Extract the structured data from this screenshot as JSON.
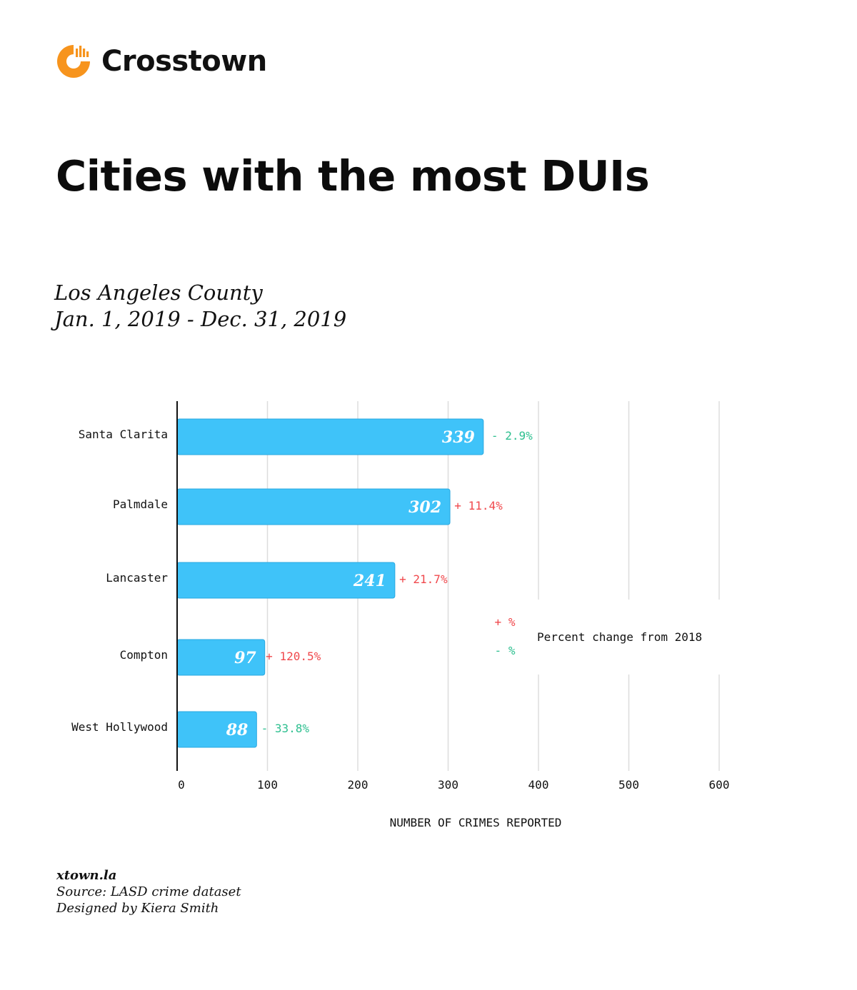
{
  "brand": {
    "name": "Crosstown",
    "logo_colors": {
      "primary": "#f7941d",
      "bars": "#f7941d"
    }
  },
  "title": "Cities with the most DUIs",
  "subtitle": {
    "line1": "Los Angeles County",
    "line2": "Jan. 1, 2019 - Dec. 31, 2019"
  },
  "chart_data": {
    "type": "bar",
    "orientation": "horizontal",
    "categories": [
      "Santa Clarita",
      "Palmdale",
      "Lancaster",
      "Compton",
      "West Hollywood"
    ],
    "values": [
      339,
      302,
      241,
      97,
      88
    ],
    "value_labels": [
      "339",
      "302",
      "241",
      "97",
      "88"
    ],
    "pct_change": [
      "- 2.9%",
      "+ 11.4%",
      "+ 21.7%",
      "+ 120.5%",
      "- 33.8%"
    ],
    "pct_direction": [
      "down",
      "up",
      "up",
      "up",
      "down"
    ],
    "xlabel": "NUMBER OF CRIMES REPORTED",
    "xlim": [
      0,
      600
    ],
    "xticks": [
      0,
      100,
      200,
      300,
      400,
      500,
      600
    ],
    "grid": true,
    "legend": {
      "up_label": "+ %",
      "down_label": "- %",
      "text": "Percent change from 2018",
      "placement": "right"
    },
    "colors": {
      "bar": "#3fc3f9",
      "bar_edge": "#2aa8e0",
      "up": "#f0484c",
      "down": "#2dbf8f",
      "grid": "#dddddd",
      "axis": "#111111"
    }
  },
  "footer": {
    "site": "xtown.la",
    "source": "Source: LASD crime dataset",
    "credit": "Designed by Kiera Smith"
  }
}
